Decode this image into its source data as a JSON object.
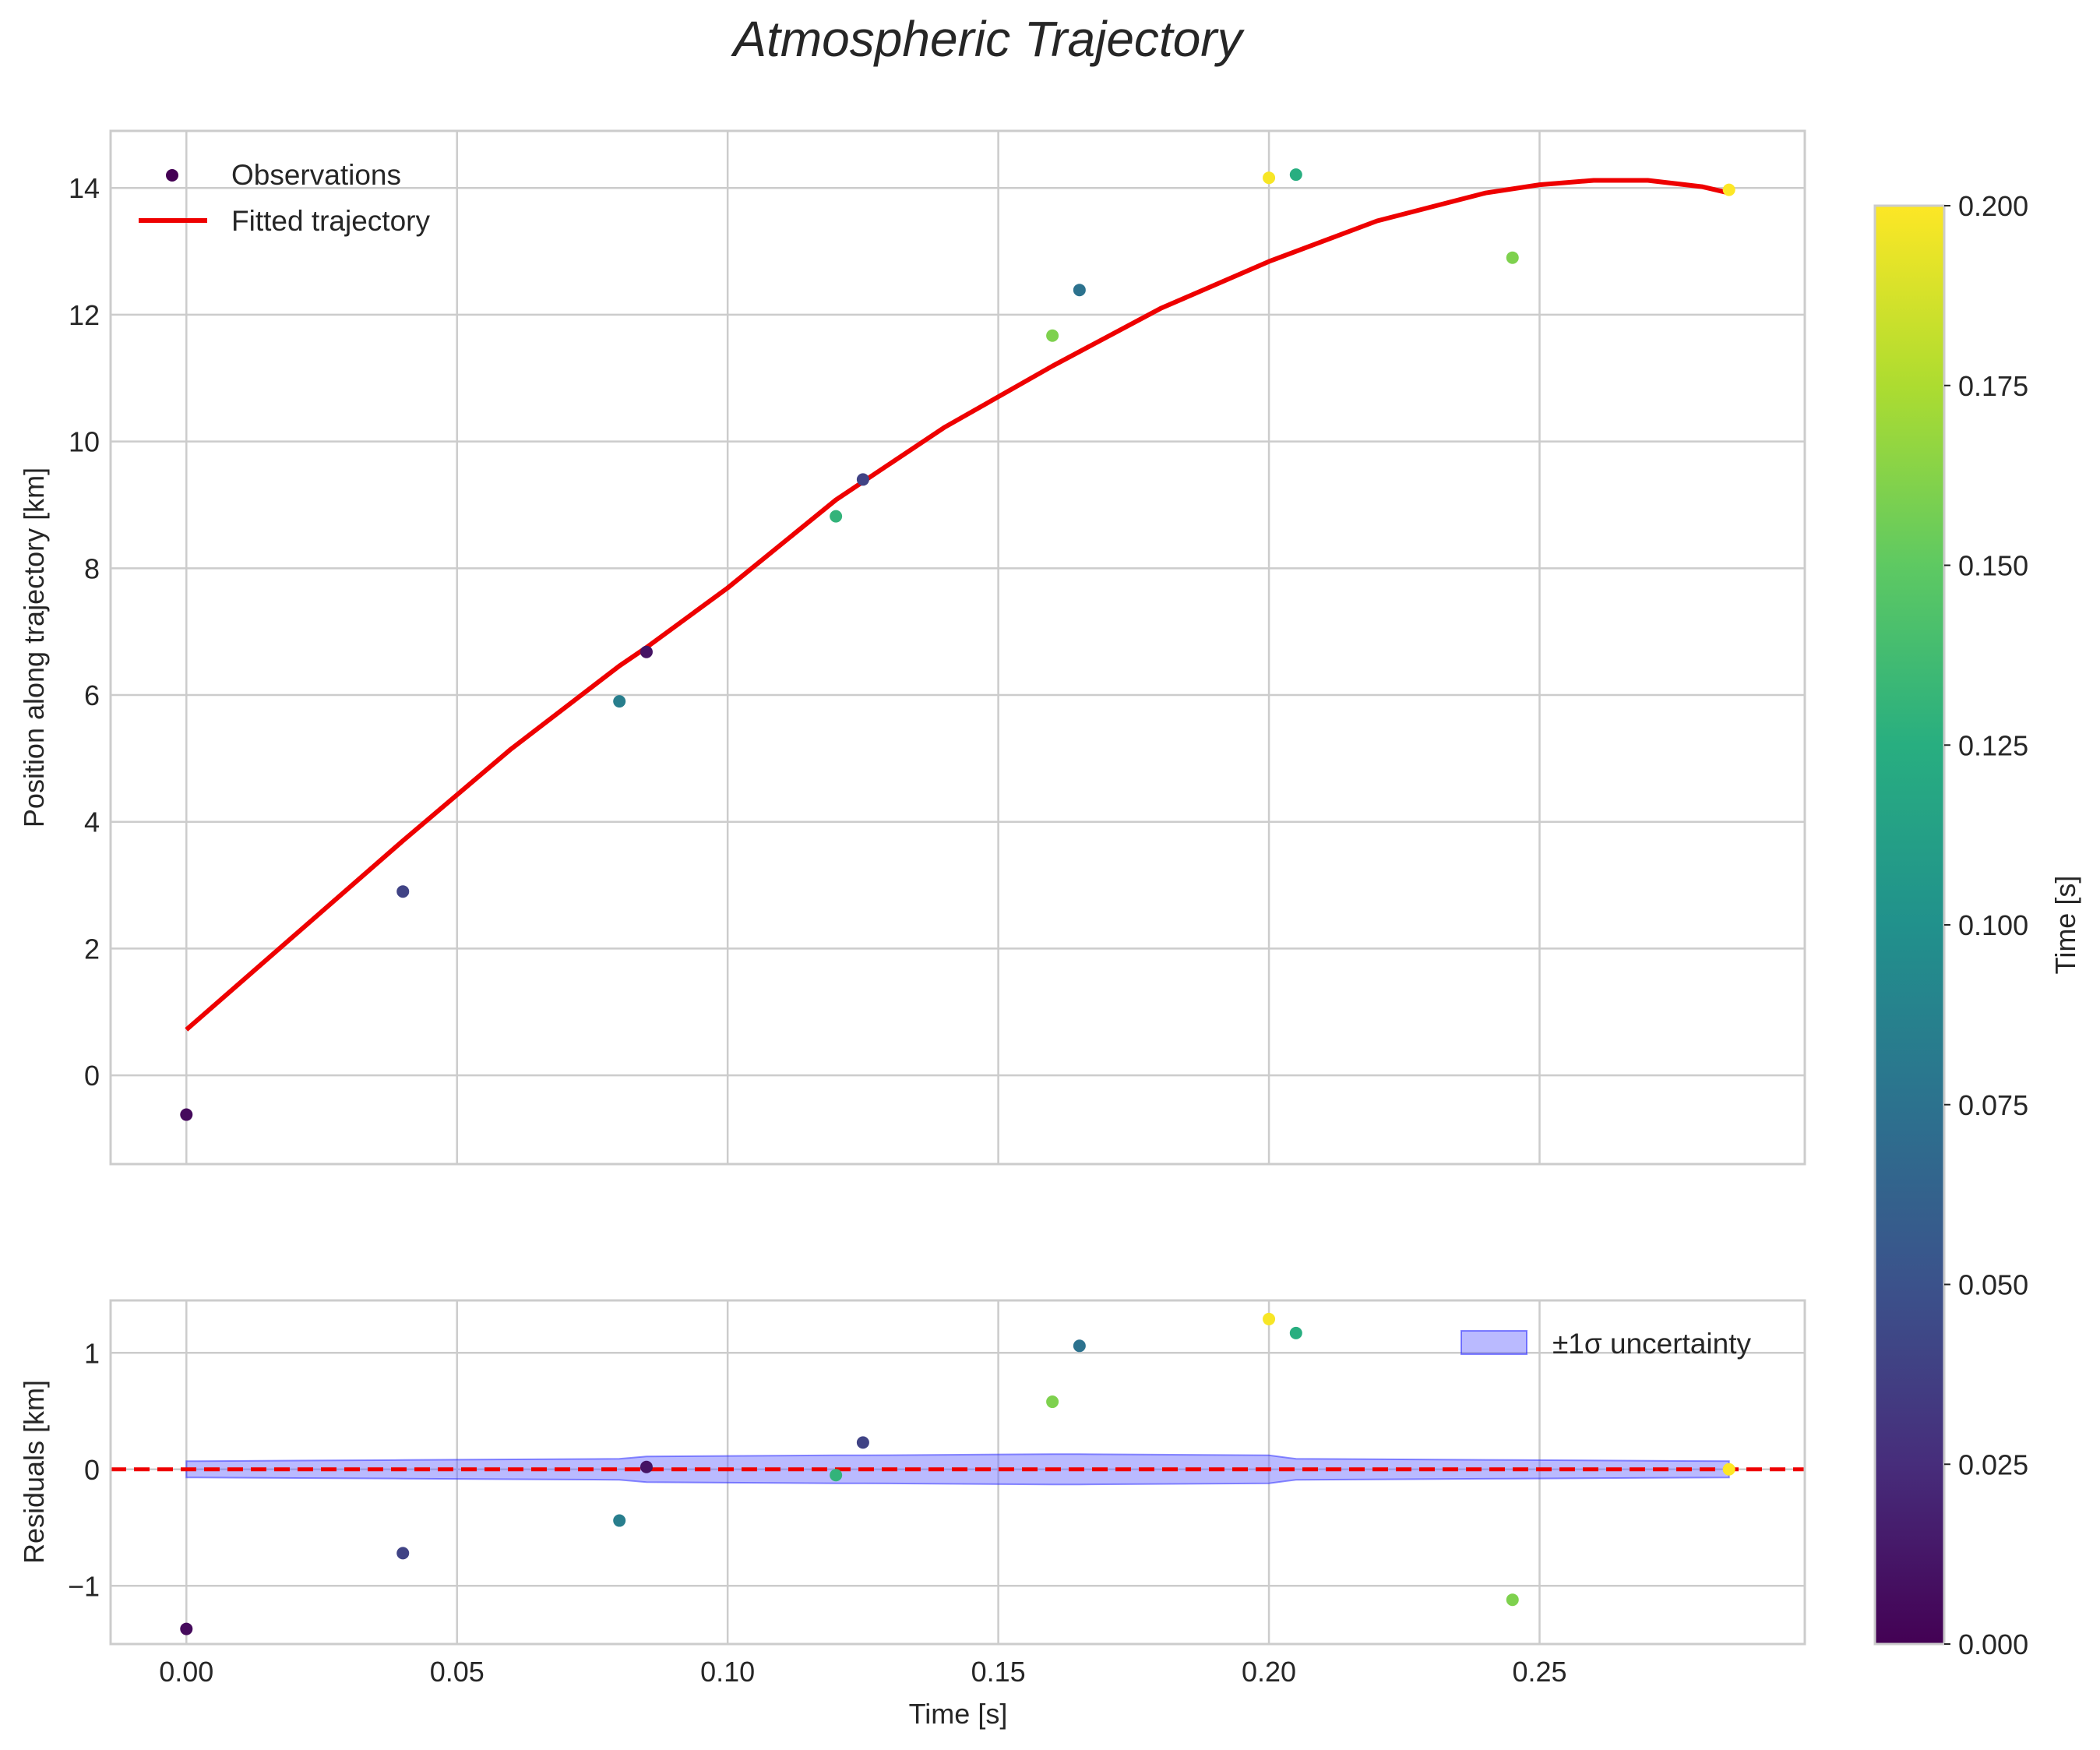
{
  "chart_data": [
    {
      "type": "scatter+line",
      "title": "Atmospheric Trajectory",
      "xlabel": "",
      "ylabel": "Position along trajectory [km]",
      "xlim": [
        -0.014,
        0.299
      ],
      "ylim": [
        -1.4,
        14.9
      ],
      "x_ticks": [
        0.0,
        0.05,
        0.1,
        0.15,
        0.2,
        0.25
      ],
      "y_ticks": [
        0,
        2,
        4,
        6,
        8,
        10,
        12,
        14
      ],
      "y_tick_labels": [
        "0",
        "2",
        "4",
        "6",
        "8",
        "10",
        "12",
        "14"
      ],
      "grid": true,
      "legend_location": "upper-left",
      "series": [
        {
          "name": "Observations",
          "kind": "scatter",
          "colormap": "viridis",
          "points": [
            {
              "t": 0.0,
              "y": -0.62,
              "c": 0.005
            },
            {
              "t": 0.04,
              "y": 2.9,
              "c": 0.04
            },
            {
              "t": 0.08,
              "y": 5.9,
              "c": 0.085
            },
            {
              "t": 0.085,
              "y": 6.68,
              "c": 0.01
            },
            {
              "t": 0.12,
              "y": 8.82,
              "c": 0.13
            },
            {
              "t": 0.125,
              "y": 9.4,
              "c": 0.04
            },
            {
              "t": 0.16,
              "y": 11.67,
              "c": 0.16
            },
            {
              "t": 0.165,
              "y": 12.39,
              "c": 0.075
            },
            {
              "t": 0.2,
              "y": 14.16,
              "c": 0.198
            },
            {
              "t": 0.205,
              "y": 14.21,
              "c": 0.125
            },
            {
              "t": 0.245,
              "y": 12.9,
              "c": 0.16
            },
            {
              "t": 0.285,
              "y": 13.97,
              "c": 0.2
            }
          ]
        },
        {
          "name": "Fitted trajectory",
          "kind": "line",
          "color": "#ee0000",
          "t": [
            0.0,
            0.02,
            0.04,
            0.06,
            0.08,
            0.085,
            0.1,
            0.12,
            0.14,
            0.16,
            0.18,
            0.2,
            0.22,
            0.24,
            0.25,
            0.26,
            0.27,
            0.28,
            0.285
          ],
          "y": [
            0.72,
            2.21,
            3.7,
            5.15,
            6.46,
            6.75,
            7.69,
            9.08,
            10.22,
            11.19,
            12.1,
            12.84,
            13.48,
            13.92,
            14.05,
            14.12,
            14.12,
            14.02,
            13.92
          ]
        }
      ]
    },
    {
      "type": "scatter+band",
      "xlabel": "Time [s]",
      "ylabel": "Residuals [km]",
      "xlim": [
        -0.014,
        0.299
      ],
      "ylim": [
        -1.5,
        1.45
      ],
      "x_ticks": [
        0.0,
        0.05,
        0.1,
        0.15,
        0.2,
        0.25
      ],
      "x_tick_labels": [
        "0.00",
        "0.05",
        "0.10",
        "0.15",
        "0.20",
        "0.25"
      ],
      "y_ticks": [
        -1,
        0,
        1
      ],
      "y_tick_labels": [
        "−1",
        "0",
        "1"
      ],
      "grid": true,
      "legend_location": "upper-right",
      "series": [
        {
          "name": "Residuals",
          "kind": "scatter",
          "colormap": "viridis",
          "points": [
            {
              "t": 0.0,
              "y": -1.37,
              "c": 0.005
            },
            {
              "t": 0.04,
              "y": -0.72,
              "c": 0.04
            },
            {
              "t": 0.08,
              "y": -0.44,
              "c": 0.085
            },
            {
              "t": 0.085,
              "y": 0.02,
              "c": 0.01
            },
            {
              "t": 0.12,
              "y": -0.05,
              "c": 0.13
            },
            {
              "t": 0.125,
              "y": 0.23,
              "c": 0.04
            },
            {
              "t": 0.16,
              "y": 0.58,
              "c": 0.16
            },
            {
              "t": 0.165,
              "y": 1.06,
              "c": 0.075
            },
            {
              "t": 0.2,
              "y": 1.29,
              "c": 0.198
            },
            {
              "t": 0.205,
              "y": 1.17,
              "c": 0.125
            },
            {
              "t": 0.245,
              "y": -1.12,
              "c": 0.16
            },
            {
              "t": 0.285,
              "y": 0.0,
              "c": 0.2
            }
          ]
        },
        {
          "name": "±1σ uncertainty",
          "kind": "band",
          "color": "#6666ff",
          "t": [
            0.0,
            0.04,
            0.08,
            0.085,
            0.12,
            0.125,
            0.16,
            0.165,
            0.2,
            0.205,
            0.245,
            0.285
          ],
          "sigma": [
            0.07,
            0.08,
            0.09,
            0.11,
            0.12,
            0.12,
            0.13,
            0.13,
            0.12,
            0.09,
            0.08,
            0.07
          ]
        },
        {
          "name": "zero reference",
          "kind": "hline",
          "y": 0,
          "color": "#ee0000",
          "style": "dashed"
        }
      ]
    },
    {
      "type": "colorbar",
      "label": "Time [s]",
      "colormap": "viridis",
      "range": [
        0.0,
        0.2
      ],
      "ticks": [
        0.0,
        0.025,
        0.05,
        0.075,
        0.1,
        0.125,
        0.15,
        0.175,
        0.2
      ],
      "tick_labels": [
        "0.000",
        "0.025",
        "0.050",
        "0.075",
        "0.100",
        "0.125",
        "0.150",
        "0.175",
        "0.200"
      ]
    }
  ]
}
